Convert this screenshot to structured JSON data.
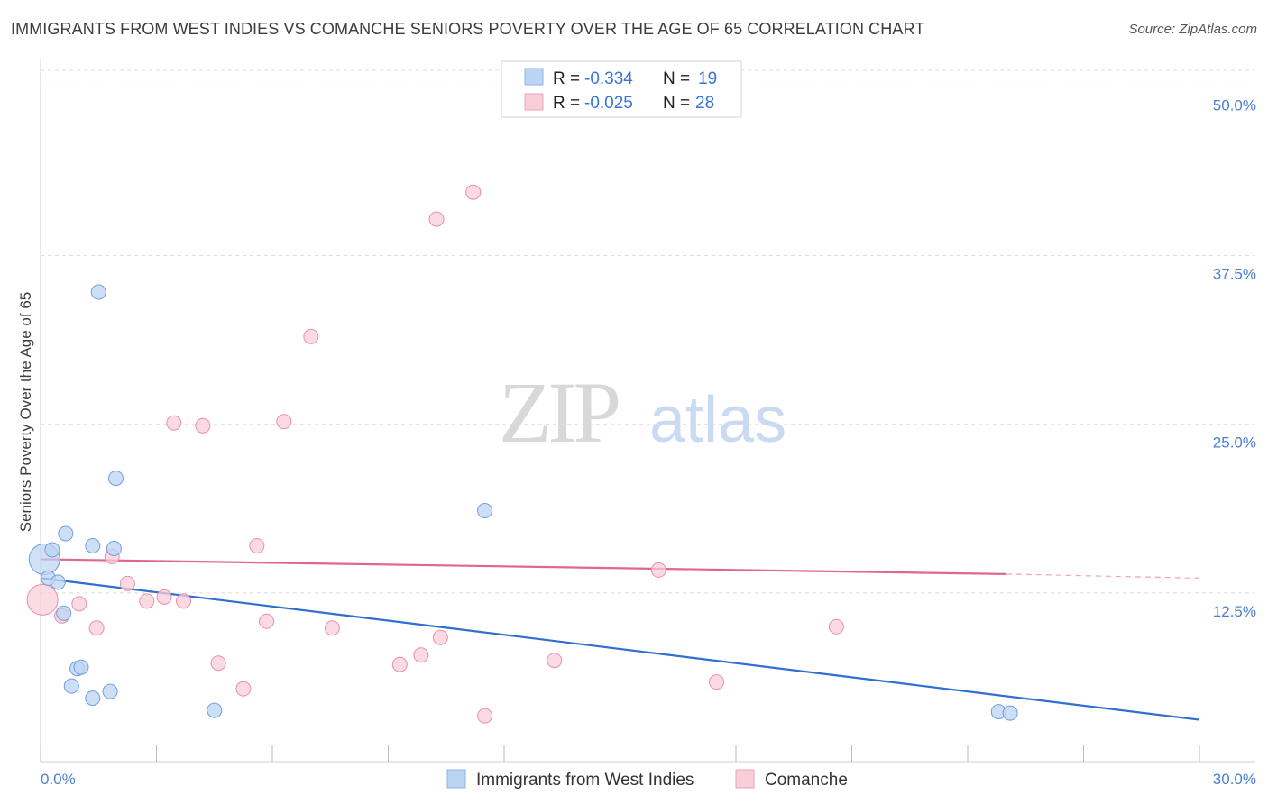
{
  "title": "IMMIGRANTS FROM WEST INDIES VS COMANCHE SENIORS POVERTY OVER THE AGE OF 65 CORRELATION CHART",
  "source": "Source: ZipAtlas.com",
  "watermark": {
    "zip": "ZIP",
    "atlas": "atlas"
  },
  "legend": {
    "r_label": "R =",
    "n_label": "N =",
    "rows": [
      {
        "series": "Immigrants from West Indies",
        "r": "-0.334",
        "n": "19",
        "color": "#a9c8f0"
      },
      {
        "series": "Comanche",
        "r": "-0.025",
        "n": "28",
        "color": "#f5b8cb"
      }
    ]
  },
  "chart_data": {
    "type": "scatter",
    "title": "IMMIGRANTS FROM WEST INDIES VS COMANCHE SENIORS POVERTY OVER THE AGE OF 65 CORRELATION CHART",
    "xlabel": "",
    "ylabel": "Seniors Poverty Over the Age of 65",
    "xlim": [
      0,
      30
    ],
    "ylim": [
      0,
      50
    ],
    "x_tick_labels": [
      "0.0%",
      "30.0%"
    ],
    "y_ticks": [
      12.5,
      25.0,
      37.5,
      50.0
    ],
    "y_tick_labels": [
      "12.5%",
      "25.0%",
      "37.5%",
      "50.0%"
    ],
    "grid": true,
    "series": [
      {
        "name": "Immigrants from West Indies",
        "color": "#6f9fe0",
        "fill": "#bcd4f4",
        "trend_color": "#2e6fd0",
        "trend": {
          "x": [
            0,
            30
          ],
          "y": [
            13.6,
            3.1
          ]
        },
        "points": [
          {
            "x": 0.1,
            "y": 15.0,
            "big": true
          },
          {
            "x": 0.2,
            "y": 13.6
          },
          {
            "x": 0.3,
            "y": 15.7
          },
          {
            "x": 0.45,
            "y": 13.3
          },
          {
            "x": 0.6,
            "y": 11.0
          },
          {
            "x": 0.65,
            "y": 16.9
          },
          {
            "x": 0.8,
            "y": 5.6
          },
          {
            "x": 0.95,
            "y": 6.9
          },
          {
            "x": 1.05,
            "y": 7.0
          },
          {
            "x": 1.35,
            "y": 4.7
          },
          {
            "x": 1.35,
            "y": 16.0
          },
          {
            "x": 1.5,
            "y": 34.8
          },
          {
            "x": 1.8,
            "y": 5.2
          },
          {
            "x": 1.9,
            "y": 15.8
          },
          {
            "x": 1.95,
            "y": 21.0
          },
          {
            "x": 4.5,
            "y": 3.8
          },
          {
            "x": 11.5,
            "y": 18.6
          },
          {
            "x": 24.8,
            "y": 3.7
          },
          {
            "x": 25.1,
            "y": 3.6
          }
        ]
      },
      {
        "name": "Comanche",
        "color": "#e890aa",
        "fill": "#f9cdd9",
        "trend_color": "#e06690",
        "trend": {
          "x": [
            0,
            25.0
          ],
          "y": [
            15.0,
            13.9
          ]
        },
        "trend_dashed": {
          "x": [
            25.0,
            30
          ],
          "y": [
            13.9,
            13.6
          ]
        },
        "points": [
          {
            "x": 0.05,
            "y": 12.0,
            "big": true
          },
          {
            "x": 0.55,
            "y": 10.8
          },
          {
            "x": 1.0,
            "y": 11.7
          },
          {
            "x": 1.45,
            "y": 9.9
          },
          {
            "x": 1.85,
            "y": 15.2
          },
          {
            "x": 2.25,
            "y": 13.2
          },
          {
            "x": 2.75,
            "y": 11.9
          },
          {
            "x": 3.2,
            "y": 12.2
          },
          {
            "x": 3.45,
            "y": 25.1
          },
          {
            "x": 3.7,
            "y": 11.9
          },
          {
            "x": 4.2,
            "y": 24.9
          },
          {
            "x": 4.6,
            "y": 7.3
          },
          {
            "x": 5.25,
            "y": 5.4
          },
          {
            "x": 5.6,
            "y": 16.0
          },
          {
            "x": 5.85,
            "y": 10.4
          },
          {
            "x": 6.3,
            "y": 25.2
          },
          {
            "x": 7.0,
            "y": 31.5
          },
          {
            "x": 7.55,
            "y": 9.9
          },
          {
            "x": 9.3,
            "y": 7.2
          },
          {
            "x": 9.85,
            "y": 7.9
          },
          {
            "x": 10.25,
            "y": 40.2
          },
          {
            "x": 10.35,
            "y": 9.2
          },
          {
            "x": 11.2,
            "y": 42.2
          },
          {
            "x": 11.5,
            "y": 3.4
          },
          {
            "x": 13.3,
            "y": 7.5
          },
          {
            "x": 16.0,
            "y": 14.2
          },
          {
            "x": 17.5,
            "y": 5.9
          },
          {
            "x": 20.6,
            "y": 10.0
          }
        ]
      }
    ]
  }
}
